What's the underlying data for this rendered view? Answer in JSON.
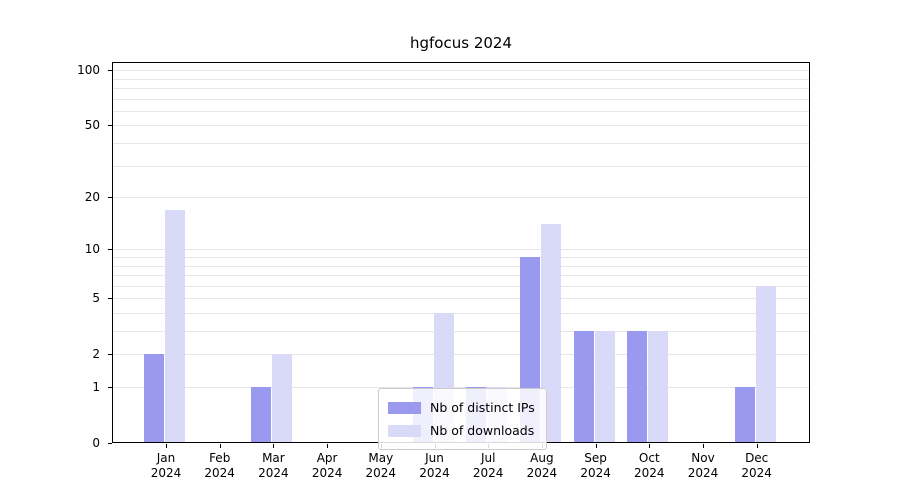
{
  "chart_data": {
    "type": "bar",
    "title": "hgfocus 2024",
    "year": "2024",
    "categories": [
      "Jan",
      "Feb",
      "Mar",
      "Apr",
      "May",
      "Jun",
      "Jul",
      "Aug",
      "Sep",
      "Oct",
      "Nov",
      "Dec"
    ],
    "series": [
      {
        "name": "Nb of distinct IPs",
        "color": "#9999f0",
        "values": [
          2,
          0,
          1,
          0,
          0,
          1,
          1,
          9,
          3,
          3,
          0,
          1
        ]
      },
      {
        "name": "Nb of downloads",
        "color": "#d9d9f8",
        "values": [
          17,
          0,
          2,
          0,
          0,
          4,
          1,
          14,
          3,
          3,
          0,
          6
        ]
      }
    ],
    "yticks": [
      0,
      1,
      2,
      5,
      10,
      20,
      50,
      100
    ],
    "minor_gridlines": [
      1,
      2,
      3,
      4,
      5,
      6,
      7,
      8,
      9,
      10,
      20,
      30,
      40,
      50,
      60,
      70,
      80,
      90,
      100
    ],
    "scale": "log1p",
    "ylim": [
      0,
      110
    ],
    "xlabel": "",
    "ylabel": "",
    "grid": true,
    "legend_position": "lower center"
  }
}
